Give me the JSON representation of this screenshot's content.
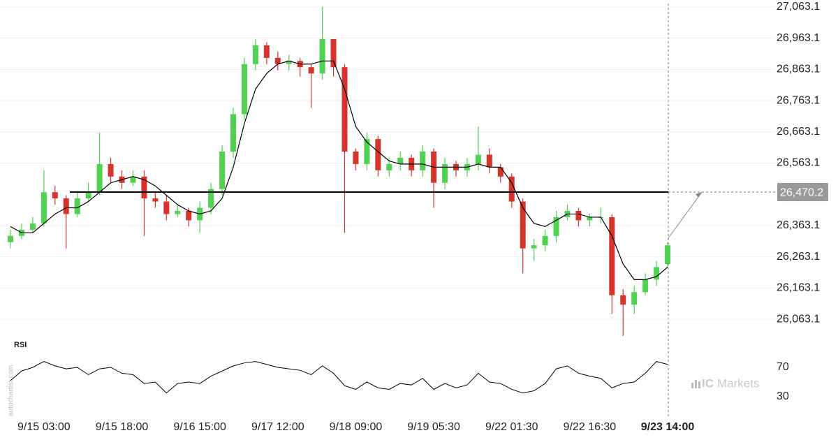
{
  "chart_data": [
    {
      "type": "candlestick",
      "categories": [
        null,
        null,
        null,
        "9/15 03:00",
        null,
        null,
        null,
        null,
        null,
        null,
        "9/15 18:00",
        null,
        null,
        null,
        null,
        null,
        null,
        "9/16 15:00",
        null,
        null,
        null,
        null,
        null,
        null,
        "9/17 12:00",
        null,
        null,
        null,
        null,
        null,
        null,
        "9/18 09:00",
        null,
        null,
        null,
        null,
        null,
        null,
        "9/19 05:30",
        null,
        null,
        null,
        null,
        null,
        null,
        "9/22 01:30",
        null,
        null,
        null,
        null,
        null,
        null,
        "9/22 16:30",
        null,
        null,
        null,
        null,
        null,
        null,
        "9/23 14:00"
      ],
      "open": [
        26310,
        26330,
        26350,
        26370,
        26470,
        26450,
        26400,
        26450,
        26470,
        26560,
        26520,
        26500,
        26520,
        26450,
        26440,
        26400,
        26410,
        26380,
        26420,
        26480,
        26600,
        26720,
        26880,
        26940,
        26900,
        26880,
        26890,
        26870,
        26850,
        26960,
        26870,
        26600,
        26560,
        26640,
        26540,
        26560,
        26580,
        26540,
        26600,
        26500,
        26560,
        26540,
        26560,
        26590,
        26550,
        26520,
        26440,
        26290,
        26300,
        26330,
        26390,
        26410,
        26380,
        26390,
        26390,
        26140,
        26110,
        26150,
        26190,
        26240
      ],
      "high": [
        26350,
        26370,
        26390,
        26540,
        26490,
        26460,
        26470,
        26500,
        26660,
        26580,
        26540,
        26540,
        26540,
        26470,
        26460,
        26430,
        26420,
        26440,
        26500,
        26620,
        26740,
        26900,
        26960,
        26950,
        26920,
        26910,
        26900,
        26880,
        27063,
        26960,
        26880,
        26610,
        26660,
        26650,
        26580,
        26600,
        26590,
        26620,
        26610,
        26580,
        26570,
        26580,
        26680,
        26610,
        26560,
        26530,
        26450,
        26320,
        26350,
        26410,
        26430,
        26420,
        26400,
        26420,
        26400,
        26160,
        26170,
        26210,
        26250,
        26310
      ],
      "low": [
        26290,
        26320,
        26340,
        26360,
        26430,
        26290,
        26390,
        26440,
        26460,
        26500,
        26480,
        26490,
        26330,
        26420,
        26380,
        26390,
        26360,
        26340,
        26400,
        26460,
        26580,
        26700,
        26860,
        26880,
        26860,
        26860,
        26840,
        26740,
        26830,
        26840,
        26340,
        26540,
        26540,
        26520,
        26520,
        26540,
        26520,
        26520,
        26420,
        26480,
        26520,
        26520,
        26540,
        26530,
        26500,
        26420,
        26210,
        26250,
        26280,
        26310,
        26380,
        26360,
        26360,
        26370,
        26080,
        26010,
        26080,
        26140,
        26170,
        26230
      ],
      "close": [
        26330,
        26350,
        26370,
        26470,
        26450,
        26400,
        26450,
        26470,
        26560,
        26520,
        26500,
        26520,
        26450,
        26440,
        26400,
        26410,
        26380,
        26420,
        26480,
        26600,
        26720,
        26880,
        26940,
        26900,
        26880,
        26890,
        26870,
        26850,
        26960,
        26870,
        26600,
        26560,
        26640,
        26540,
        26560,
        26580,
        26540,
        26600,
        26500,
        26560,
        26540,
        26560,
        26590,
        26550,
        26520,
        26440,
        26290,
        26300,
        26330,
        26390,
        26410,
        26380,
        26390,
        26390,
        26140,
        26110,
        26150,
        26190,
        26230,
        26300
      ],
      "up_color": "#4fd24f",
      "down_color": "#d7332a",
      "ma": {
        "color": "#000000",
        "values": [
          26360,
          26340,
          26340,
          26370,
          26400,
          26420,
          26420,
          26440,
          26470,
          26500,
          26510,
          26520,
          26510,
          26490,
          26460,
          26430,
          26410,
          26400,
          26410,
          26450,
          26550,
          26690,
          26800,
          26850,
          26880,
          26890,
          26880,
          26880,
          26890,
          26890,
          26800,
          26680,
          26630,
          26600,
          26570,
          26560,
          26560,
          26560,
          26550,
          26550,
          26550,
          26550,
          26560,
          26550,
          26550,
          26500,
          26420,
          26370,
          26360,
          26380,
          26400,
          26400,
          26390,
          26390,
          26330,
          26240,
          26190,
          26190,
          26200,
          26230
        ]
      },
      "level": {
        "value": 26470.2,
        "label": "26,470.2"
      },
      "ylim": [
        26012,
        27074
      ],
      "yticks": [
        {
          "value": 26063.1,
          "label": "26,063.1"
        },
        {
          "value": 26163.1,
          "label": "26,163.1"
        },
        {
          "value": 26263.1,
          "label": "26,263.1"
        },
        {
          "value": 26363.1,
          "label": "26,363.1"
        },
        {
          "value": 26563.1,
          "label": "26,563.1"
        },
        {
          "value": 26663.1,
          "label": "26,663.1"
        },
        {
          "value": 26763.1,
          "label": "26,763.1"
        },
        {
          "value": 26863.1,
          "label": "26,863.1"
        },
        {
          "value": 26963.1,
          "label": "26,963.1"
        },
        {
          "value": 27063.1,
          "label": "27,063.1"
        }
      ],
      "grid": true
    },
    {
      "type": "line",
      "title": "RSI",
      "values": [
        52,
        65,
        70,
        78,
        72,
        68,
        70,
        60,
        68,
        70,
        62,
        60,
        48,
        50,
        35,
        48,
        50,
        48,
        58,
        65,
        72,
        76,
        78,
        74,
        70,
        68,
        66,
        60,
        72,
        62,
        45,
        40,
        50,
        42,
        40,
        48,
        46,
        55,
        40,
        48,
        42,
        46,
        62,
        50,
        48,
        40,
        35,
        38,
        48,
        68,
        72,
        62,
        58,
        55,
        42,
        48,
        50,
        62,
        78,
        74
      ],
      "color": "#000000",
      "ylim": [
        9,
        90
      ],
      "yticks": [
        30,
        70
      ]
    }
  ],
  "watermark": "autochartist.com",
  "logo": {
    "brand": "IC",
    "name": "Markets"
  }
}
